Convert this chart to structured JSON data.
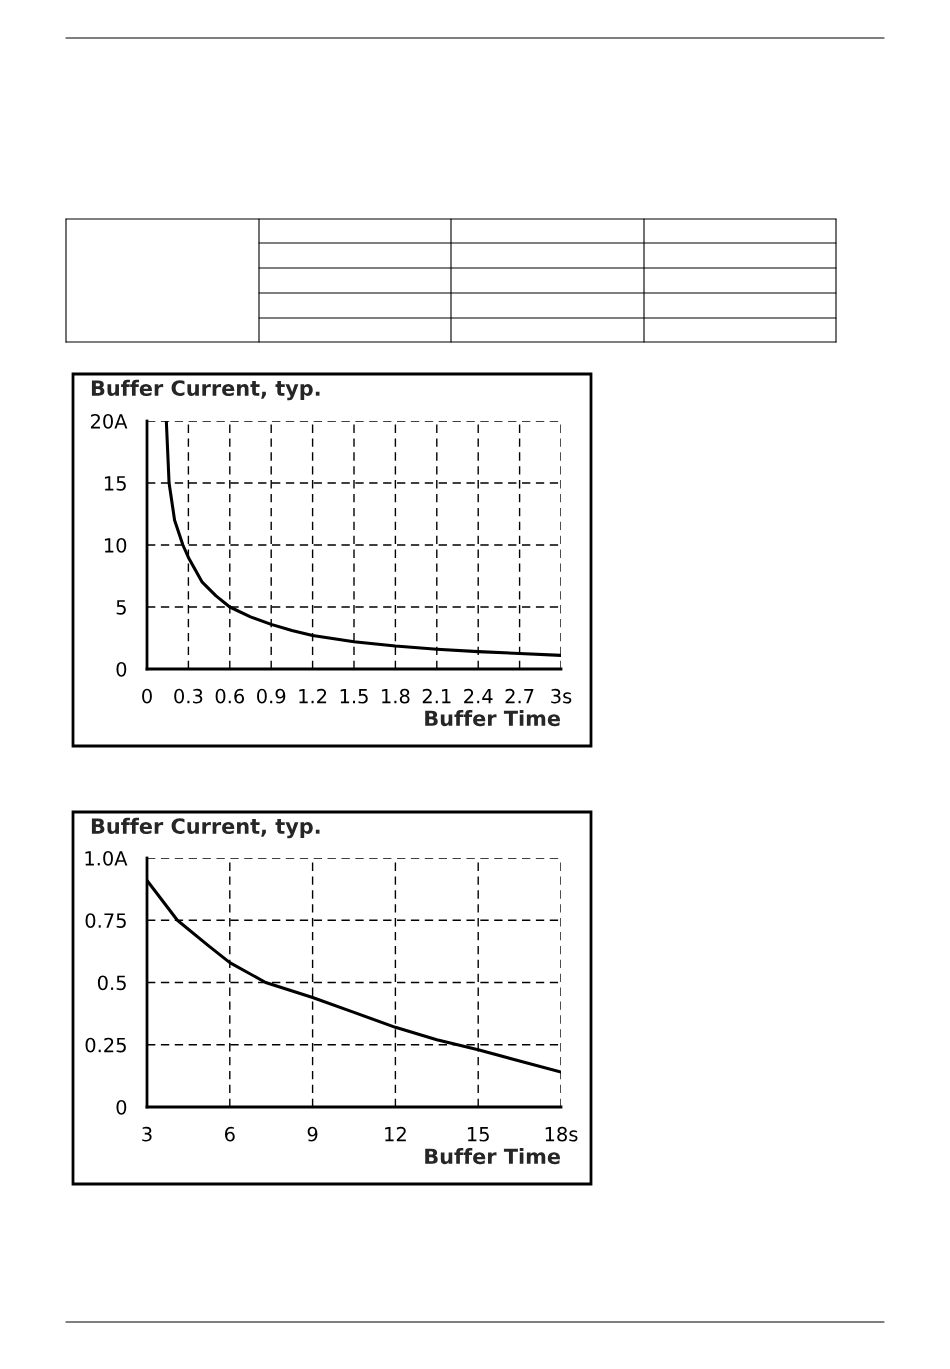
{
  "chart_data": [
    {
      "type": "line",
      "title": "Buffer Current, typ.",
      "xlabel": "Buffer Time",
      "x": [
        0.14,
        0.16,
        0.2,
        0.26,
        0.3,
        0.4,
        0.5,
        0.6,
        0.75,
        0.9,
        1.05,
        1.2,
        1.5,
        1.8,
        2.1,
        2.4,
        2.7,
        3
      ],
      "series": [
        {
          "color": "#000000",
          "values": [
            20,
            15,
            12,
            10,
            9,
            7,
            5.9,
            5,
            4.2,
            3.6,
            3.1,
            2.7,
            2.2,
            1.85,
            1.6,
            1.4,
            1.25,
            1.1
          ]
        }
      ],
      "xlim": [
        0,
        3
      ],
      "ylim": [
        0,
        20
      ],
      "xticks": [
        0,
        0.3,
        0.6,
        0.9,
        1.2,
        1.5,
        1.8,
        2.1,
        2.4,
        2.7,
        {
          "value": 3,
          "label": "3s"
        }
      ],
      "yticks": [
        0,
        5,
        10,
        15,
        {
          "value": 20,
          "label": "20A"
        }
      ],
      "grid": true,
      "legend": false
    },
    {
      "type": "line",
      "title": "Buffer Current, typ.",
      "xlabel": "Buffer Time",
      "x": [
        3,
        4.1,
        5.2,
        6,
        7.3,
        9,
        10.5,
        12,
        13.5,
        15,
        16.5,
        18
      ],
      "series": [
        {
          "color": "#000000",
          "values": [
            0.91,
            0.75,
            0.65,
            0.58,
            0.5,
            0.44,
            0.38,
            0.32,
            0.27,
            0.23,
            0.185,
            0.14
          ]
        }
      ],
      "xlim": [
        3,
        18
      ],
      "ylim": [
        0,
        1.0
      ],
      "xticks": [
        3,
        6,
        9,
        12,
        15,
        {
          "value": 18,
          "label": "18s"
        }
      ],
      "yticks": [
        0,
        0.25,
        0.5,
        0.75,
        {
          "value": 1.0,
          "label": "1.0A"
        }
      ],
      "grid": true,
      "legend": false
    }
  ]
}
